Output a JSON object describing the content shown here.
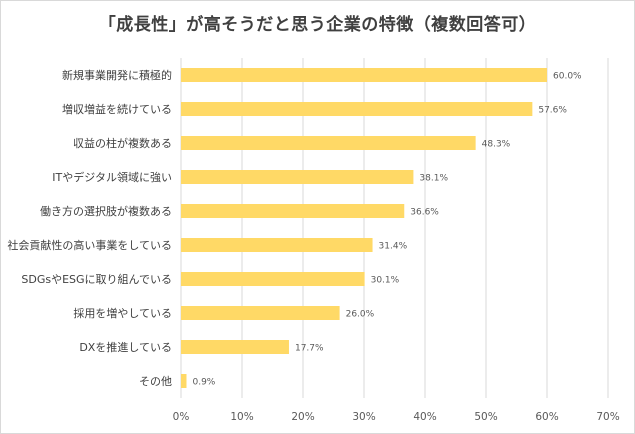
{
  "chart_data": {
    "type": "bar",
    "orientation": "horizontal",
    "title": "「成長性」が高そうだと思う企業の特徴（複数回答可）",
    "categories": [
      "新規事業開発に積極的",
      "増収増益を続けている",
      "収益の柱が複数ある",
      "ITやデジタル領域に強い",
      "働き方の選択肢が複数ある",
      "社会貢献性の高い事業をしている",
      "SDGsやESGに取り組んでいる",
      "採用を増やしている",
      "DXを推進している",
      "その他"
    ],
    "values": [
      60.0,
      57.6,
      48.3,
      38.1,
      36.6,
      31.4,
      30.1,
      26.0,
      17.7,
      0.9
    ],
    "data_labels": [
      "60.0%",
      "57.6%",
      "48.3%",
      "38.1%",
      "36.6%",
      "31.4%",
      "30.1%",
      "26.0%",
      "17.7%",
      "0.9%"
    ],
    "x_ticks": [
      0,
      10,
      20,
      30,
      40,
      50,
      60,
      70
    ],
    "x_tick_labels": [
      "0%",
      "10%",
      "20%",
      "30%",
      "40%",
      "50%",
      "60%",
      "70%"
    ],
    "xlim": [
      0,
      70
    ],
    "xlabel": "",
    "ylabel": "",
    "grid": true,
    "bar_color": "#FFD966"
  }
}
